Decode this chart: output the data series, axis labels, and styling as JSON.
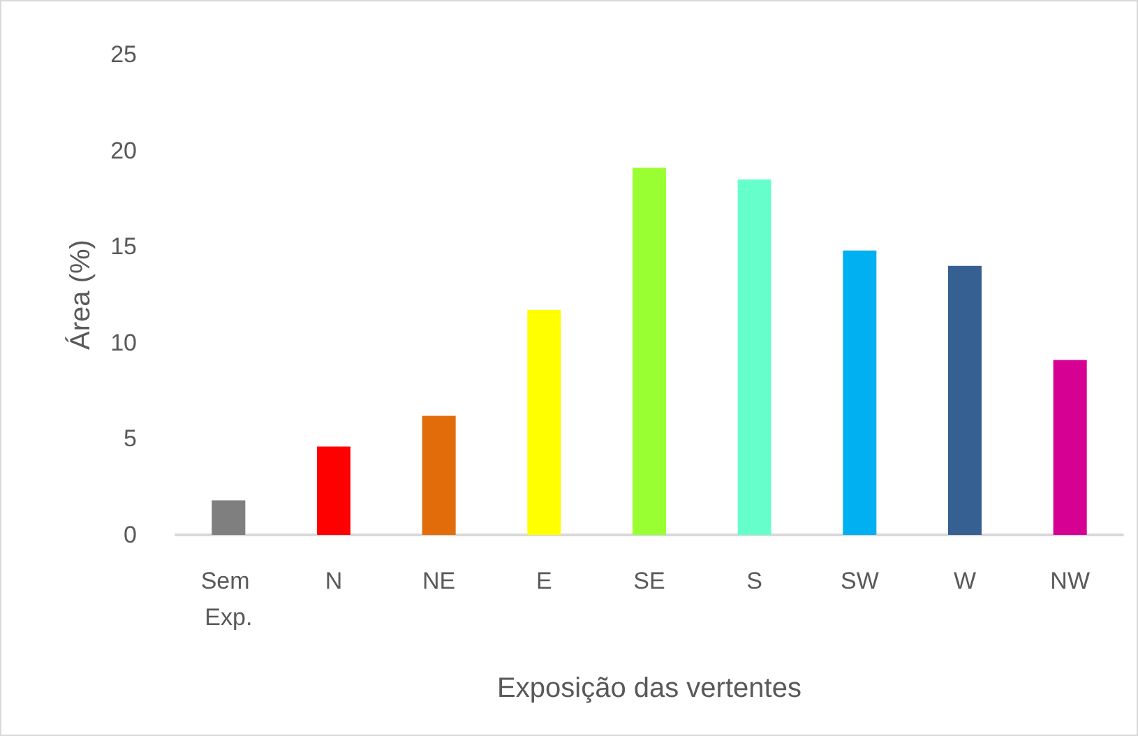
{
  "chart_data": {
    "type": "bar",
    "xlabel": "Exposição das vertentes",
    "ylabel": "Área (%)",
    "categories": [
      "Sem Exp.",
      "N",
      "NE",
      "E",
      "SE",
      "S",
      "SW",
      "W",
      "NW"
    ],
    "values": [
      1.8,
      4.6,
      6.2,
      11.7,
      19.1,
      18.5,
      14.8,
      14.0,
      9.1
    ],
    "colors": [
      "#7f7f7f",
      "#ff0000",
      "#e36c0a",
      "#ffff00",
      "#99ff33",
      "#66ffcc",
      "#00b0f0",
      "#366092",
      "#d60093"
    ],
    "ylim": [
      0,
      25
    ],
    "yticks": [
      0,
      5,
      10,
      15,
      20,
      25
    ]
  }
}
